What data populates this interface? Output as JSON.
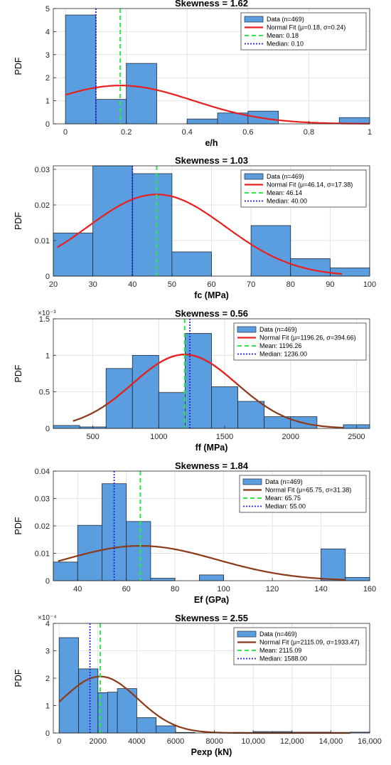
{
  "chart_data": [
    {
      "type": "bar",
      "title": "Skewness = 1.62",
      "xlabel": "e/h",
      "ylabel": "PDF",
      "xlim": [
        -0.04,
        1.0
      ],
      "ylim": [
        0,
        5
      ],
      "xticks": [
        0,
        0.2,
        0.4,
        0.6,
        0.8,
        1
      ],
      "xtick_labels": [
        "0",
        "0.2",
        "0.4",
        "0.6",
        "0.8",
        "1"
      ],
      "yticks": [
        0,
        1,
        2,
        3,
        4,
        5
      ],
      "ytick_labels": [
        "0",
        "1",
        "2",
        "3",
        "4",
        "5"
      ],
      "multiplier": "",
      "bin_edges": [
        0,
        0.1,
        0.2,
        0.3,
        0.4,
        0.5,
        0.6,
        0.7,
        0.8,
        0.9,
        1.0
      ],
      "values": [
        4.72,
        1.06,
        2.62,
        0,
        0.21,
        0.47,
        0.55,
        0,
        0,
        0.27
      ],
      "normal_fit": {
        "mu": 0.18,
        "sigma": 0.24,
        "x_range": [
          0,
          1.0
        ]
      },
      "mean": 0.18,
      "median": 0.1,
      "legend": {
        "placement": "top-right",
        "entries": [
          "Data (n=469)",
          "Normal Fit (μ=0.18, σ=0.24)",
          "Mean: 0.18",
          "Median: 0.10"
        ]
      },
      "colors": {
        "bars": "#5b9ee0",
        "fit": "#e8201e",
        "mean": "#2ee84a",
        "median": "#2222e6"
      },
      "grid": true
    },
    {
      "type": "bar",
      "title": "Skewness = 1.03",
      "xlabel": "fc (MPa)",
      "ylabel": "PDF",
      "xlim": [
        20,
        100
      ],
      "ylim": [
        0,
        0.031
      ],
      "xticks": [
        20,
        30,
        40,
        50,
        60,
        70,
        80,
        90,
        100
      ],
      "xtick_labels": [
        "20",
        "30",
        "40",
        "50",
        "60",
        "70",
        "80",
        "90",
        "100"
      ],
      "yticks": [
        0,
        0.01,
        0.02,
        0.03
      ],
      "ytick_labels": [
        "0",
        "0.01",
        "0.02",
        "0.03"
      ],
      "multiplier": "",
      "bin_edges": [
        20,
        30,
        40,
        50,
        60,
        70,
        80,
        90,
        100
      ],
      "values": [
        0.0121,
        0.0318,
        0.0288,
        0.0068,
        0,
        0.0142,
        0.0049,
        0.0023
      ],
      "normal_fit": {
        "mu": 46.14,
        "sigma": 17.38,
        "x_range": [
          21,
          93
        ]
      },
      "mean": 46.14,
      "median": 40.0,
      "legend": {
        "placement": "top-right",
        "entries": [
          "Data (n=469)",
          "Normal Fit (μ=46.14, σ=17.38)",
          "Mean: 46.14",
          "Median: 40.00"
        ]
      },
      "colors": {
        "bars": "#5b9ee0",
        "fit": "#e8201e",
        "mean": "#2ee84a",
        "median": "#2222e6"
      },
      "grid": true
    },
    {
      "type": "bar",
      "title": "Skewness = 0.56",
      "xlabel": "ff (MPa)",
      "ylabel": "PDF",
      "xlim": [
        200,
        2600
      ],
      "ylim": [
        0,
        1.5
      ],
      "xticks": [
        500,
        1000,
        1500,
        2000,
        2500
      ],
      "xtick_labels": [
        "500",
        "1000",
        "1500",
        "2000",
        "2500"
      ],
      "yticks": [
        0,
        0.5,
        1,
        1.5
      ],
      "ytick_labels": [
        "0",
        "0.5",
        "1",
        "1.5"
      ],
      "multiplier": "×10⁻³",
      "bin_edges": [
        200,
        400,
        600,
        800,
        1000,
        1200,
        1400,
        1600,
        1800,
        2000,
        2200,
        2400,
        2600
      ],
      "values": [
        0.04,
        0.02,
        0.82,
        1.0,
        0.49,
        1.3,
        0.57,
        0.37,
        0.16,
        0.16,
        0,
        0.05
      ],
      "normal_fit": {
        "mu": 1196.26,
        "sigma": 394.66,
        "x_range": [
          350,
          2400
        ]
      },
      "mean": 1196.26,
      "median": 1236.0,
      "legend": {
        "placement": "top-right",
        "entries": [
          "Data (n=469)",
          "Normal Fit (μ=1196.26, σ=394.66)",
          "Mean: 1196.26",
          "Median: 1236.00"
        ]
      },
      "colors": {
        "bars": "#5b9ee0",
        "fit": "#e8201e",
        "fit_tails": "#8b3a1a",
        "mean": "#2ee84a",
        "median": "#2222e6"
      },
      "grid": true
    },
    {
      "type": "bar",
      "title": "Skewness = 1.84",
      "xlabel": "Ef (GPa)",
      "ylabel": "PDF",
      "xlim": [
        30,
        160
      ],
      "ylim": [
        0,
        0.04
      ],
      "xticks": [
        40,
        60,
        80,
        100,
        120,
        140,
        160
      ],
      "xtick_labels": [
        "40",
        "60",
        "80",
        "100",
        "120",
        "140",
        "160"
      ],
      "yticks": [
        0,
        0.01,
        0.02,
        0.03,
        0.04
      ],
      "ytick_labels": [
        "0",
        "0.01",
        "0.02",
        "0.03",
        "0.04"
      ],
      "multiplier": "",
      "bin_edges": [
        30,
        40,
        50,
        60,
        70,
        80,
        90,
        100,
        110,
        120,
        130,
        140,
        150,
        160
      ],
      "values": [
        0.0068,
        0.0202,
        0.0354,
        0.0216,
        0.0009,
        0,
        0.0021,
        0,
        0,
        0,
        0,
        0.0116,
        0.0012
      ],
      "normal_fit": {
        "mu": 65.75,
        "sigma": 31.38,
        "x_range": [
          32,
          150
        ]
      },
      "mean": 65.75,
      "median": 55.0,
      "legend": {
        "placement": "top-right",
        "entries": [
          "Data (n=469)",
          "Normal Fit (μ=65.75, σ=31.38)",
          "Mean: 65.75",
          "Median: 55.00"
        ]
      },
      "colors": {
        "bars": "#5b9ee0",
        "fit": "#8b3a1a",
        "mean": "#2ee84a",
        "median": "#2222e6"
      },
      "grid": true
    },
    {
      "type": "bar",
      "title": "Skewness = 2.55",
      "xlabel": "Pexp (kN)",
      "ylabel": "PDF",
      "xlim": [
        -300,
        16000
      ],
      "ylim": [
        0,
        4
      ],
      "xticks": [
        0,
        2000,
        4000,
        6000,
        8000,
        10000,
        12000,
        14000,
        16000
      ],
      "xtick_labels": [
        "0",
        "2000",
        "4000",
        "6000",
        "8000",
        "10,000",
        "12,000",
        "14,000",
        "16,000"
      ],
      "yticks": [
        0,
        1,
        2,
        3,
        4
      ],
      "ytick_labels": [
        "0",
        "1",
        "2",
        "3",
        "4"
      ],
      "multiplier": "×10⁻⁴",
      "bin_edges": [
        0,
        1000,
        2000,
        2500,
        3000,
        4000,
        5000,
        6000,
        7000,
        8000,
        9000,
        10000,
        11000,
        12000,
        13000,
        14000,
        15000,
        16000
      ],
      "values": [
        3.48,
        2.34,
        1.47,
        1.49,
        1.62,
        0.56,
        0.26,
        0.02,
        0,
        0,
        0.02,
        0.05,
        0.05,
        0.03,
        0.03,
        0.02,
        0.03
      ],
      "normal_fit": {
        "mu": 2115.09,
        "sigma": 1933.47,
        "x_range": [
          0,
          15000
        ]
      },
      "mean": 2115.09,
      "median": 1588.0,
      "legend": {
        "placement": "top-right",
        "entries": [
          "Data (n=469)",
          "Normal Fit (μ=2115.09, σ=1933.47)",
          "Mean: 2115.09",
          "Median: 1588.00"
        ]
      },
      "colors": {
        "bars": "#5b9ee0",
        "fit": "#8b3a1a",
        "mean": "#2ee84a",
        "median": "#2222e6"
      },
      "grid": true
    }
  ]
}
